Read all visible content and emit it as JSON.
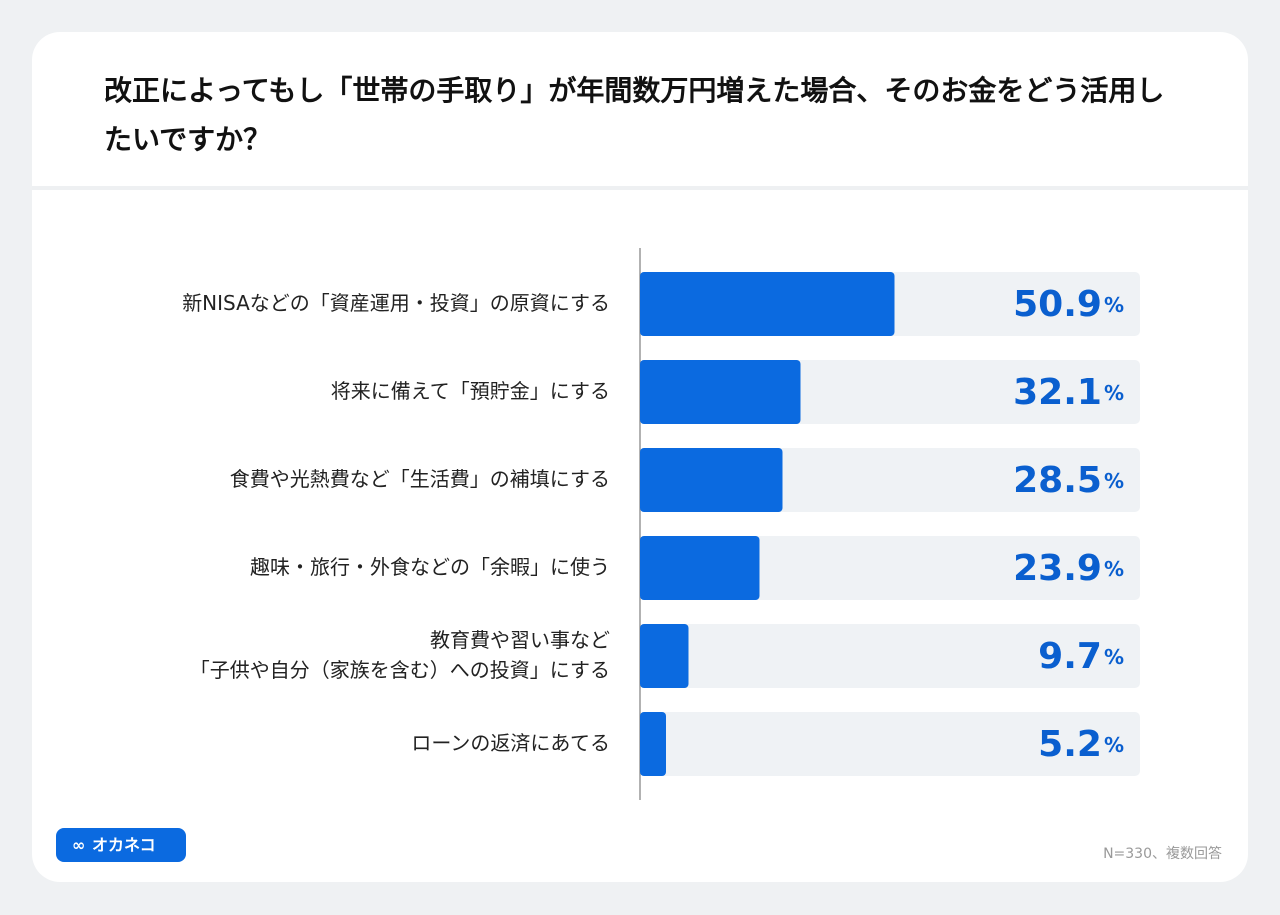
{
  "chart_data": {
    "type": "bar",
    "orientation": "horizontal",
    "title": "改正によってもし「世帯の手取り」が年間数万円増えた場合、そのお金をどう活用したいですか？",
    "categories": [
      "新NISAなどの「資産運用・投資」の原資にする",
      "将来に備えて「預貯金」にする",
      "食費や光熱費など「生活費」の補填にする",
      "趣味・旅行・外食などの「余暇」に使う",
      "教育費や習い事など\n「子供や自分（家族を含む）への投資」にする",
      "ローンの返済にあてる"
    ],
    "values": [
      50.9,
      32.1,
      28.5,
      23.9,
      9.7,
      5.2
    ],
    "value_labels": [
      "50.9%",
      "32.1%",
      "28.5%",
      "23.9%",
      "9.7%",
      "5.2%"
    ],
    "color": "#0b6ae0",
    "xlim": [
      0,
      100
    ],
    "note": "N=330、複数回答",
    "logo": "オカネコ"
  }
}
